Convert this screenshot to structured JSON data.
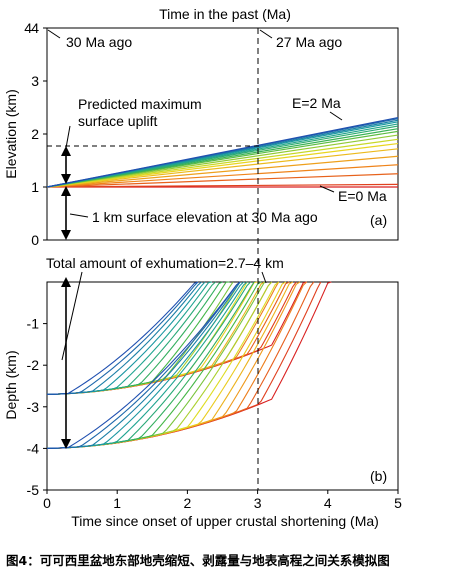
{
  "figure_title": "Time in the past (Ma)",
  "caption": "图4：可可西里盆地东部地壳缩短、剥露量与地表高程之间关系模拟图",
  "colors": {
    "red": "#d92020",
    "orange": "#f08a1a",
    "yellow": "#e8e020",
    "green": "#3cb44b",
    "teal": "#1aa0a0",
    "blue": "#2050b0"
  },
  "chart_data": [
    {
      "type": "line",
      "panel": "(a)",
      "ylabel": "Elevation (km)",
      "xlim": [
        0,
        5
      ],
      "ylim": [
        0,
        4
      ],
      "yticks": [
        0,
        1,
        2,
        3,
        4
      ],
      "annotations": {
        "left_top": "30 Ma ago",
        "right_top": "27 Ma ago",
        "uplift_label_1": "Predicted maximum",
        "uplift_label_2": "surface uplift",
        "base_label": "1 km surface elevation at 30 Ma ago",
        "e_max_label": "E=2 Ma",
        "e_min_label": "E=0 Ma"
      },
      "reference_time": 3,
      "max_uplift_elevation": 1.75,
      "series_note": "elevation vs time for E from 0 Ma to 2 Ma",
      "series": [
        {
          "values_x": [
            0,
            5
          ],
          "values_y": [
            1.0,
            1.0
          ]
        },
        {
          "values_x": [
            0,
            5
          ],
          "values_y": [
            1.0,
            1.05
          ]
        },
        {
          "values_x": [
            0,
            5
          ],
          "values_y": [
            1.0,
            1.25
          ]
        },
        {
          "values_x": [
            0,
            5
          ],
          "values_y": [
            1.0,
            1.42
          ]
        },
        {
          "values_x": [
            0,
            5
          ],
          "values_y": [
            1.0,
            1.58
          ]
        },
        {
          "values_x": [
            0,
            5
          ],
          "values_y": [
            1.0,
            1.72
          ]
        },
        {
          "values_x": [
            0,
            5
          ],
          "values_y": [
            1.0,
            1.82
          ]
        },
        {
          "values_x": [
            0,
            5
          ],
          "values_y": [
            1.0,
            1.9
          ]
        },
        {
          "values_x": [
            0,
            5
          ],
          "values_y": [
            1.0,
            1.98
          ]
        },
        {
          "values_x": [
            0,
            5
          ],
          "values_y": [
            1.0,
            2.05
          ]
        },
        {
          "values_x": [
            0,
            5
          ],
          "values_y": [
            1.0,
            2.1
          ]
        },
        {
          "values_x": [
            0,
            5
          ],
          "values_y": [
            1.0,
            2.15
          ]
        },
        {
          "values_x": [
            0,
            5
          ],
          "values_y": [
            1.0,
            2.19
          ]
        },
        {
          "values_x": [
            0,
            5
          ],
          "values_y": [
            1.0,
            2.23
          ]
        },
        {
          "values_x": [
            0,
            5
          ],
          "values_y": [
            1.0,
            2.26
          ]
        },
        {
          "values_x": [
            0,
            5
          ],
          "values_y": [
            1.0,
            2.29
          ]
        },
        {
          "values_x": [
            0,
            5
          ],
          "values_y": [
            1.0,
            2.31
          ]
        }
      ]
    },
    {
      "type": "line",
      "panel": "(b)",
      "xlabel": "Time since onset of upper crustal shortening (Ma)",
      "ylabel": "Depth (km)",
      "xlim": [
        0,
        5
      ],
      "ylim": [
        -5,
        0
      ],
      "xticks": [
        0,
        1,
        2,
        3,
        4,
        5
      ],
      "yticks": [
        -1,
        -2,
        -3,
        -4,
        -5
      ],
      "annotations": {
        "exhumation_label": "Total amount of exhumation=2.7–4 km"
      },
      "start_depths": [
        -2.7,
        -4.0
      ]
    }
  ],
  "x_top_ticks": [
    "4"
  ]
}
